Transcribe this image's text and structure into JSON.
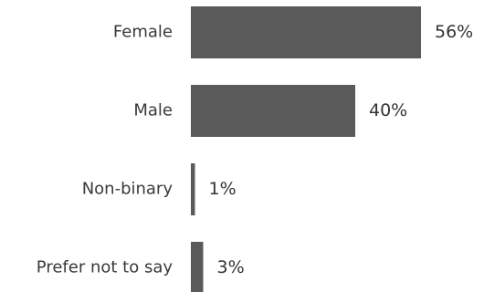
{
  "chart_data": {
    "type": "bar",
    "orientation": "horizontal",
    "categories": [
      "Female",
      "Male",
      "Non-binary",
      "Prefer not to say"
    ],
    "values": [
      56,
      40,
      1,
      3
    ],
    "value_labels": [
      "56%",
      "40%",
      "1%",
      "3%"
    ],
    "unit": "%",
    "xlim": [
      0,
      56
    ],
    "grid": false,
    "legend": "none",
    "bar_color": "#5a5a5a",
    "title": "",
    "xlabel": "",
    "ylabel": ""
  }
}
